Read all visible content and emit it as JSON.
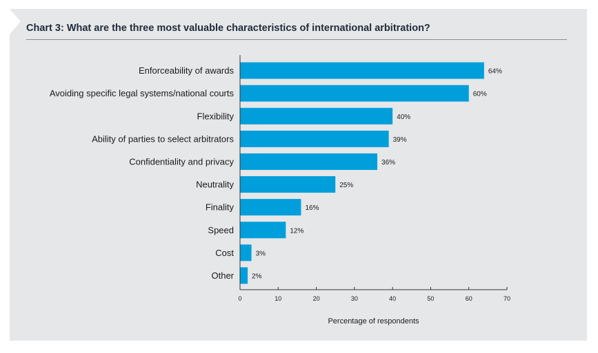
{
  "title": "Chart 3: What are the three most valuable characteristics of international arbitration?",
  "colors": {
    "bar": "#009fdb",
    "axis": "#333333",
    "panel": "#e6e7e8"
  },
  "chart_data": {
    "type": "bar",
    "orientation": "horizontal",
    "categories": [
      "Enforceability of awards",
      "Avoiding specific legal systems/national courts",
      "Flexibility",
      "Ability of parties to select arbitrators",
      "Confidentiality and privacy",
      "Neutrality",
      "Finality",
      "Speed",
      "Cost",
      "Other"
    ],
    "values": [
      64,
      60,
      40,
      39,
      36,
      25,
      16,
      12,
      3,
      2
    ],
    "data_labels": [
      "64%",
      "60%",
      "40%",
      "39%",
      "36%",
      "25%",
      "16%",
      "12%",
      "3%",
      "2%"
    ],
    "xlabel": "Percentage of respondents",
    "ylabel": "",
    "xlim": [
      0,
      70
    ],
    "xticks": [
      0,
      10,
      20,
      30,
      40,
      50,
      60,
      70
    ],
    "grid": false,
    "legend": "none"
  }
}
